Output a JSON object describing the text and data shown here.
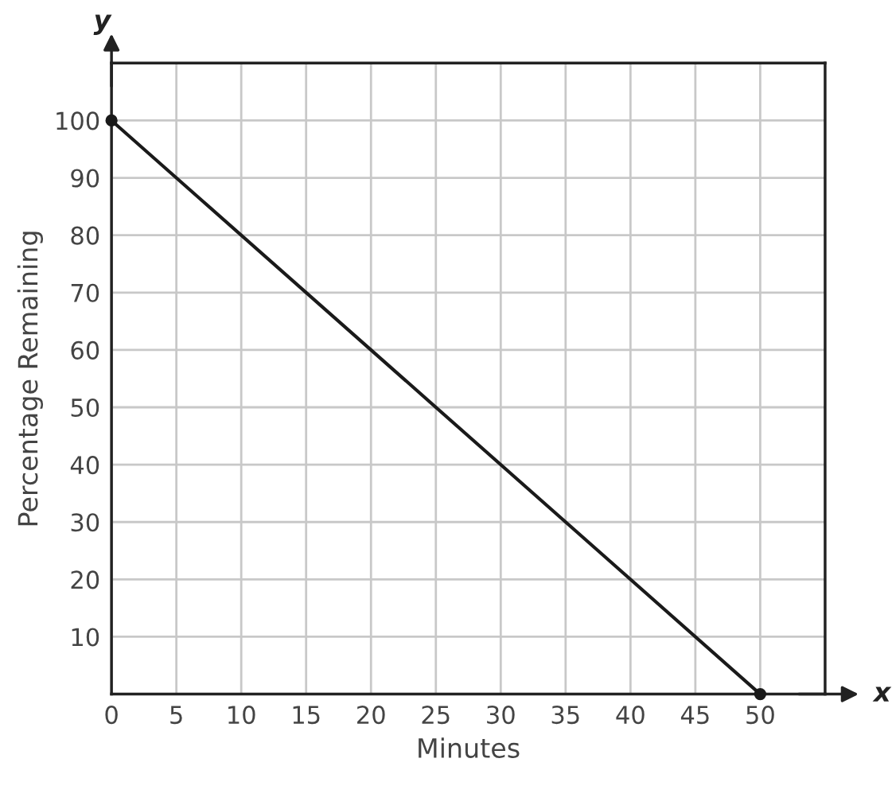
{
  "chart_data": {
    "type": "line",
    "xlabel": "Minutes",
    "ylabel": "Percentage Remaining",
    "x": [
      0,
      50
    ],
    "series": [
      {
        "color": "#1a1a1a",
        "values": [
          100,
          0
        ]
      }
    ],
    "xlim": [
      0,
      55
    ],
    "ylim": [
      0,
      110
    ],
    "xticks": [
      0,
      5,
      10,
      15,
      20,
      25,
      30,
      35,
      40,
      45,
      50
    ],
    "yticks": [
      {
        "value": 0,
        "label": null
      },
      10,
      20,
      30,
      40,
      50,
      60,
      70,
      80,
      90,
      100
    ],
    "grid": true,
    "marker": "circle",
    "line_style": "solid",
    "annotations": [
      "x",
      "y"
    ]
  }
}
